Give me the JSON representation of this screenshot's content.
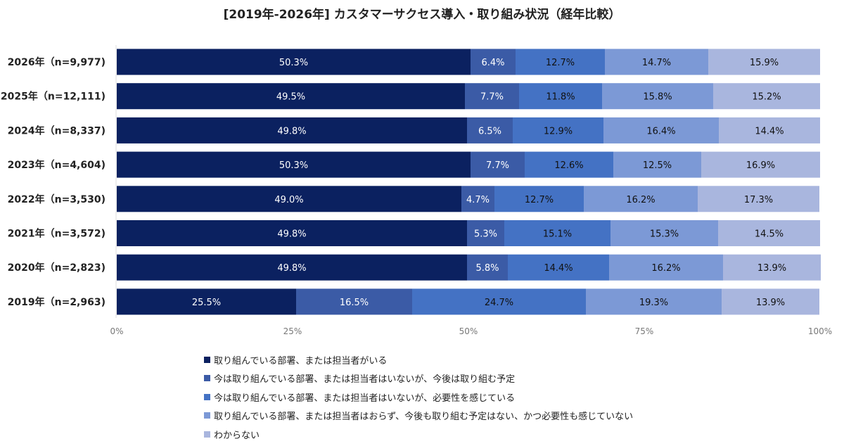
{
  "chart_data": {
    "type": "bar",
    "orientation": "horizontal",
    "stacked": true,
    "title": "[2019年-2026年] カスタマーサクセス導入・取り組み状況（経年比較）",
    "categories": [
      "2026年（n=9,977)",
      "2025年（n=12,111)",
      "2024年（n=8,337)",
      "2023年（n=4,604)",
      "2022年（n=3,530)",
      "2021年（n=3,572)",
      "2020年（n=2,823)",
      "2019年（n=2,963)"
    ],
    "xlim": [
      0,
      100
    ],
    "x_ticks": [
      "0%",
      "25%",
      "50%",
      "75%",
      "100%"
    ],
    "grid": false,
    "legend_position": "bottom",
    "series": [
      {
        "name": "取り組んでいる部署、または担当者がいる",
        "color": "#0b2160",
        "label_color": "#ffffff",
        "values": [
          50.3,
          49.5,
          49.8,
          50.3,
          49.0,
          49.8,
          49.8,
          25.5
        ]
      },
      {
        "name": "今は取り組んでいる部署、または担当者はいないが、今後は取り組む予定",
        "color": "#3b5ba6",
        "label_color": "#ffffff",
        "values": [
          6.4,
          7.7,
          6.5,
          7.7,
          4.7,
          5.3,
          5.8,
          16.5
        ]
      },
      {
        "name": "今は取り組んでいる部署、または担当者はいないが、必要性を感じている",
        "color": "#4472c4",
        "label_color": "#111111",
        "values": [
          12.7,
          11.8,
          12.9,
          12.6,
          12.7,
          15.1,
          14.4,
          24.7
        ]
      },
      {
        "name": "取り組んでいる部署、または担当者はおらず、今後も取り組む予定はない、かつ必要性も感じていない",
        "color": "#7c99d6",
        "label_color": "#111111",
        "values": [
          14.7,
          15.8,
          16.4,
          12.5,
          16.2,
          15.3,
          16.2,
          19.3
        ]
      },
      {
        "name": "わからない",
        "color": "#a9b6de",
        "label_color": "#111111",
        "values": [
          15.9,
          15.2,
          14.4,
          16.9,
          17.3,
          14.5,
          13.9,
          13.9
        ]
      }
    ]
  }
}
